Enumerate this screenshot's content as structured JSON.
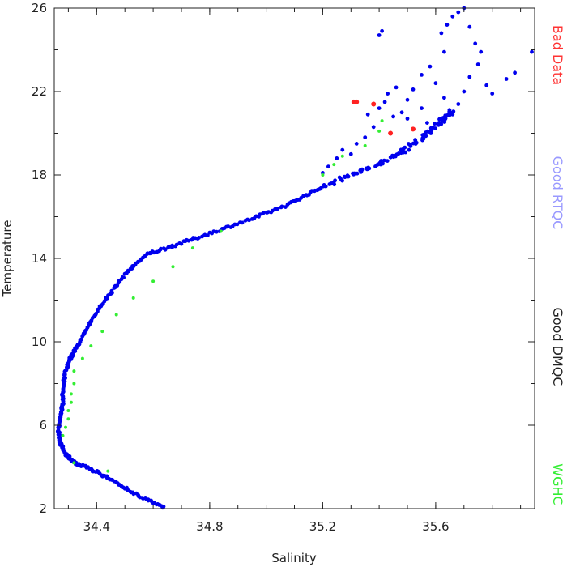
{
  "chart_data": {
    "type": "scatter",
    "xlabel": "Salinity",
    "ylabel": "Temperature",
    "xlim": [
      34.25,
      35.95
    ],
    "ylim": [
      2,
      26
    ],
    "x_ticks": [
      34.4,
      34.8,
      35.2,
      35.6
    ],
    "x_tick_labels": [
      "34.4",
      "34.8",
      "35.2",
      "35.6"
    ],
    "y_ticks": [
      2,
      6,
      10,
      14,
      18,
      22,
      26
    ],
    "y_tick_labels": [
      "2",
      "6",
      "10",
      "14",
      "18",
      "22",
      "26"
    ],
    "grid": false,
    "legend_placement": "right",
    "legend": [
      {
        "label": "Bad Data",
        "color": "#ff3333"
      },
      {
        "label": "Good RTQC",
        "color": "#9999ff"
      },
      {
        "label": "Good DMQC",
        "color": "#222222"
      },
      {
        "label": "WGHC",
        "color": "#33ee33"
      }
    ],
    "series": [
      {
        "color": "#0000ee",
        "curve": [
          [
            34.64,
            2.05
          ],
          [
            34.55,
            2.6
          ],
          [
            34.45,
            3.4
          ],
          [
            34.38,
            3.9
          ],
          [
            34.32,
            4.2
          ],
          [
            34.29,
            4.6
          ],
          [
            34.27,
            5.2
          ],
          [
            34.265,
            5.8
          ],
          [
            34.27,
            6.4
          ],
          [
            34.28,
            7.0
          ],
          [
            34.28,
            7.8
          ],
          [
            34.29,
            8.6
          ],
          [
            34.31,
            9.3
          ],
          [
            34.34,
            10.0
          ],
          [
            34.38,
            11.0
          ],
          [
            34.44,
            12.2
          ],
          [
            34.51,
            13.4
          ],
          [
            34.58,
            14.2
          ],
          [
            34.67,
            14.6
          ],
          [
            34.8,
            15.2
          ],
          [
            34.95,
            15.9
          ],
          [
            35.08,
            16.6
          ],
          [
            35.18,
            17.3
          ],
          [
            35.28,
            17.9
          ],
          [
            35.38,
            18.4
          ],
          [
            35.48,
            19.1
          ],
          [
            35.56,
            19.9
          ],
          [
            35.62,
            20.6
          ],
          [
            35.66,
            21.1
          ]
        ],
        "extra_points": [
          [
            35.2,
            18.1
          ],
          [
            35.22,
            18.4
          ],
          [
            35.25,
            18.8
          ],
          [
            35.27,
            19.2
          ],
          [
            35.3,
            19.0
          ],
          [
            35.32,
            19.5
          ],
          [
            35.35,
            19.8
          ],
          [
            35.38,
            20.3
          ],
          [
            35.36,
            20.9
          ],
          [
            35.4,
            21.2
          ],
          [
            35.42,
            21.5
          ],
          [
            35.45,
            20.8
          ],
          [
            35.48,
            21.0
          ],
          [
            35.5,
            21.6
          ],
          [
            35.52,
            22.1
          ],
          [
            35.55,
            22.8
          ],
          [
            35.58,
            23.2
          ],
          [
            35.6,
            22.4
          ],
          [
            35.63,
            21.7
          ],
          [
            35.66,
            20.9
          ],
          [
            35.68,
            21.4
          ],
          [
            35.7,
            22.0
          ],
          [
            35.72,
            22.7
          ],
          [
            35.75,
            23.3
          ],
          [
            35.78,
            22.3
          ],
          [
            35.8,
            21.9
          ],
          [
            35.85,
            22.6
          ],
          [
            35.88,
            22.9
          ],
          [
            35.4,
            24.7
          ],
          [
            35.41,
            24.9
          ],
          [
            35.62,
            24.8
          ],
          [
            35.64,
            25.2
          ],
          [
            35.66,
            25.6
          ],
          [
            35.68,
            25.8
          ],
          [
            35.7,
            26.0
          ],
          [
            35.72,
            25.1
          ],
          [
            35.74,
            24.3
          ],
          [
            35.76,
            23.9
          ],
          [
            35.63,
            23.9
          ],
          [
            35.94,
            23.9
          ],
          [
            35.55,
            21.2
          ],
          [
            35.57,
            20.5
          ],
          [
            35.46,
            22.2
          ],
          [
            35.43,
            21.9
          ],
          [
            35.5,
            20.7
          ]
        ]
      },
      {
        "color": "#33ee33",
        "points": [
          [
            34.28,
            5.5
          ],
          [
            34.29,
            5.9
          ],
          [
            34.3,
            6.3
          ],
          [
            34.3,
            6.7
          ],
          [
            34.31,
            7.1
          ],
          [
            34.31,
            7.5
          ],
          [
            34.32,
            8.0
          ],
          [
            34.32,
            8.6
          ],
          [
            34.35,
            9.2
          ],
          [
            34.38,
            9.8
          ],
          [
            34.42,
            10.5
          ],
          [
            34.47,
            11.3
          ],
          [
            34.53,
            12.1
          ],
          [
            34.6,
            12.9
          ],
          [
            34.67,
            13.6
          ],
          [
            34.74,
            14.5
          ],
          [
            34.84,
            15.3
          ],
          [
            35.2,
            18.0
          ],
          [
            35.24,
            18.5
          ],
          [
            35.27,
            18.9
          ],
          [
            35.35,
            19.4
          ],
          [
            35.4,
            20.1
          ],
          [
            35.41,
            20.6
          ],
          [
            34.32,
            4.2
          ],
          [
            34.44,
            3.8
          ]
        ]
      },
      {
        "color": "#ff2222",
        "points": [
          [
            35.31,
            21.5
          ],
          [
            35.32,
            21.5
          ],
          [
            35.38,
            21.4
          ],
          [
            35.44,
            20.0
          ],
          [
            35.52,
            20.2
          ]
        ]
      }
    ]
  }
}
